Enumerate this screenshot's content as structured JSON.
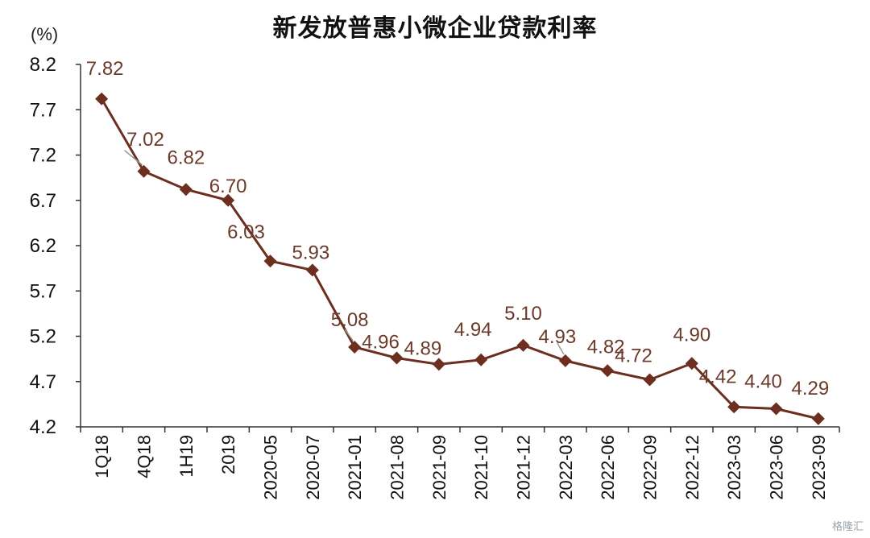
{
  "chart_data": {
    "type": "line",
    "title": "新发放普惠小微企业贷款利率",
    "unit_label": "(%)",
    "categories": [
      "1Q18",
      "4Q18",
      "1H19",
      "2019",
      "2020-05",
      "2020-07",
      "2021-01",
      "2021-08",
      "2021-09",
      "2021-10",
      "2021-12",
      "2022-03",
      "2022-06",
      "2022-09",
      "2022-12",
      "2023-03",
      "2023-06",
      "2023-09"
    ],
    "series": [
      {
        "values": [
          7.82,
          7.02,
          6.82,
          6.7,
          6.03,
          5.93,
          5.08,
          4.96,
          4.89,
          4.94,
          5.1,
          4.93,
          4.82,
          4.72,
          4.9,
          4.42,
          4.4,
          4.29
        ],
        "data_labels": [
          "7.82",
          "7.02",
          "6.82",
          "6.70",
          "6.03",
          "5.93",
          "5.08",
          "4.96",
          "4.89",
          "4.94",
          "5.10",
          "4.93",
          "4.82",
          "4.72",
          "4.90",
          "4.42",
          "4.40",
          "4.29"
        ],
        "color": "#6b2e1f",
        "marker": "diamond"
      }
    ],
    "ylim": [
      4.2,
      8.2
    ],
    "yticks": [
      "4.2",
      "4.7",
      "5.2",
      "5.7",
      "6.2",
      "6.7",
      "7.2",
      "7.7",
      "8.2"
    ],
    "grid": false,
    "legend": "none"
  },
  "watermark": "格隆汇"
}
